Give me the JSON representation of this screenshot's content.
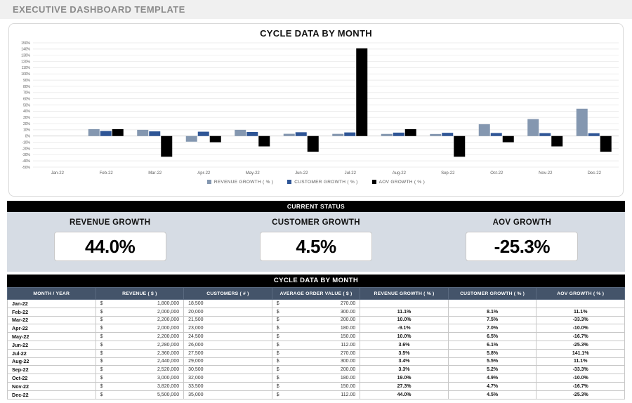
{
  "page": {
    "title": "EXECUTIVE DASHBOARD TEMPLATE"
  },
  "chart_data": {
    "type": "bar",
    "title": "CYCLE DATA BY MONTH",
    "categories": [
      "Jan-22",
      "Feb-22",
      "Mar-22",
      "Apr-22",
      "May-22",
      "Jun-22",
      "Jul-22",
      "Aug-22",
      "Sep-22",
      "Oct-22",
      "Nov-22",
      "Dec-22"
    ],
    "series": [
      {
        "name": "REVENUE GROWTH  ( % )",
        "color": "#8497b0",
        "values": [
          null,
          11.1,
          10.0,
          -9.1,
          10.0,
          3.6,
          3.5,
          3.4,
          3.3,
          19.0,
          27.3,
          44.0
        ]
      },
      {
        "name": "CUSTOMER GROWTH  ( % )",
        "color": "#2e5596",
        "values": [
          null,
          8.1,
          7.5,
          7.0,
          6.5,
          6.1,
          5.8,
          5.5,
          5.2,
          4.9,
          4.7,
          4.5
        ]
      },
      {
        "name": "AOV GROWTH  ( % )",
        "color": "#000000",
        "values": [
          null,
          11.1,
          -33.3,
          -10.0,
          -16.7,
          -25.3,
          141.1,
          11.1,
          -33.3,
          -10.0,
          -16.7,
          -25.3
        ]
      }
    ],
    "ylim": [
      -50,
      150
    ],
    "ytick_step": 10,
    "grid": true,
    "legend_position": "bottom"
  },
  "status": {
    "header": "CURRENT STATUS",
    "kpis": [
      {
        "label": "REVENUE GROWTH",
        "value": "44.0%"
      },
      {
        "label": "CUSTOMER GROWTH",
        "value": "4.5%"
      },
      {
        "label": "AOV GROWTH",
        "value": "-25.3%"
      }
    ]
  },
  "table": {
    "header": "CYCLE DATA BY MONTH",
    "columns": [
      "MONTH / YEAR",
      "REVENUE  ( $ )",
      "CUSTOMERS  ( # )",
      "AVERAGE ORDER VALUE  ( $ )",
      "REVENUE GROWTH  ( % )",
      "CUSTOMER GROWTH  ( % )",
      "AOV GROWTH  ( % )"
    ],
    "currency_symbol": "$",
    "rows": [
      {
        "month": "Jan-22",
        "revenue": "1,800,000",
        "customers": "18,500",
        "aov": "270.00",
        "rev_growth": "",
        "cust_growth": "",
        "aov_growth": ""
      },
      {
        "month": "Feb-22",
        "revenue": "2,000,000",
        "customers": "20,000",
        "aov": "300.00",
        "rev_growth": "11.1%",
        "cust_growth": "8.1%",
        "aov_growth": "11.1%"
      },
      {
        "month": "Mar-22",
        "revenue": "2,200,000",
        "customers": "21,500",
        "aov": "200.00",
        "rev_growth": "10.0%",
        "cust_growth": "7.5%",
        "aov_growth": "-33.3%"
      },
      {
        "month": "Apr-22",
        "revenue": "2,000,000",
        "customers": "23,000",
        "aov": "180.00",
        "rev_growth": "-9.1%",
        "cust_growth": "7.0%",
        "aov_growth": "-10.0%"
      },
      {
        "month": "May-22",
        "revenue": "2,200,000",
        "customers": "24,500",
        "aov": "150.00",
        "rev_growth": "10.0%",
        "cust_growth": "6.5%",
        "aov_growth": "-16.7%"
      },
      {
        "month": "Jun-22",
        "revenue": "2,280,000",
        "customers": "26,000",
        "aov": "112.00",
        "rev_growth": "3.6%",
        "cust_growth": "6.1%",
        "aov_growth": "-25.3%"
      },
      {
        "month": "Jul-22",
        "revenue": "2,360,000",
        "customers": "27,500",
        "aov": "270.00",
        "rev_growth": "3.5%",
        "cust_growth": "5.8%",
        "aov_growth": "141.1%"
      },
      {
        "month": "Aug-22",
        "revenue": "2,440,000",
        "customers": "29,000",
        "aov": "300.00",
        "rev_growth": "3.4%",
        "cust_growth": "5.5%",
        "aov_growth": "11.1%"
      },
      {
        "month": "Sep-22",
        "revenue": "2,520,000",
        "customers": "30,500",
        "aov": "200.00",
        "rev_growth": "3.3%",
        "cust_growth": "5.2%",
        "aov_growth": "-33.3%"
      },
      {
        "month": "Oct-22",
        "revenue": "3,000,000",
        "customers": "32,000",
        "aov": "180.00",
        "rev_growth": "19.0%",
        "cust_growth": "4.9%",
        "aov_growth": "-10.0%"
      },
      {
        "month": "Nov-22",
        "revenue": "3,820,000",
        "customers": "33,500",
        "aov": "150.00",
        "rev_growth": "27.3%",
        "cust_growth": "4.7%",
        "aov_growth": "-16.7%"
      },
      {
        "month": "Dec-22",
        "revenue": "5,500,000",
        "customers": "35,000",
        "aov": "112.00",
        "rev_growth": "44.0%",
        "cust_growth": "4.5%",
        "aov_growth": "-25.3%"
      }
    ]
  },
  "colors": {
    "table_header_bg": "#44546a",
    "status_bg": "#d6dce4",
    "section_bar_bg": "#000000",
    "grid_line": "#e6e6e6",
    "zero_line": "#c9c9c9",
    "axis_text": "#595959"
  }
}
